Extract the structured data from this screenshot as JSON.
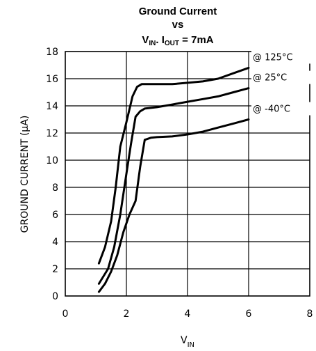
{
  "chart_data": {
    "type": "line",
    "title": {
      "line1": "Ground Current",
      "line2": "vs",
      "line3": {
        "a": "V",
        "a_sub": "IN",
        "b": ". I",
        "b_sub": "OUT",
        "c": " = 7mA"
      }
    },
    "xlabel": {
      "main": "V",
      "sub": "IN"
    },
    "ylabel": "GROUND CURRENT (μA)",
    "xlim": [
      0,
      8
    ],
    "ylim": [
      0,
      18
    ],
    "x_ticks": [
      0,
      2,
      4,
      6,
      8
    ],
    "y_ticks": [
      0,
      2,
      4,
      6,
      8,
      10,
      12,
      14,
      16,
      18
    ],
    "grid": true,
    "series": [
      {
        "name": "@ 125°C",
        "x": [
          1.1,
          1.3,
          1.5,
          1.65,
          1.8,
          2.0,
          2.2,
          2.35,
          2.5,
          3.0,
          3.5,
          4.0,
          4.5,
          5.0,
          5.5,
          6.0
        ],
        "y": [
          2.4,
          3.6,
          5.5,
          8.0,
          11.0,
          12.8,
          14.7,
          15.4,
          15.6,
          15.6,
          15.6,
          15.7,
          15.8,
          16.0,
          16.4,
          16.8
        ]
      },
      {
        "name": "@ 25°C",
        "x": [
          1.1,
          1.4,
          1.6,
          1.8,
          2.0,
          2.15,
          2.3,
          2.45,
          2.6,
          3.0,
          3.5,
          4.0,
          4.5,
          5.0,
          5.5,
          6.0
        ],
        "y": [
          0.9,
          2.0,
          3.6,
          6.0,
          9.0,
          11.2,
          13.2,
          13.6,
          13.8,
          13.9,
          14.1,
          14.3,
          14.5,
          14.7,
          15.0,
          15.3
        ]
      },
      {
        "name": "@ -40°C",
        "x": [
          1.1,
          1.3,
          1.5,
          1.7,
          1.9,
          2.1,
          2.3,
          2.45,
          2.6,
          2.8,
          3.0,
          3.5,
          4.0,
          4.5,
          5.0,
          5.5,
          6.0
        ],
        "y": [
          0.3,
          0.9,
          1.8,
          3.0,
          4.7,
          6.0,
          7.0,
          9.5,
          11.5,
          11.65,
          11.7,
          11.75,
          11.9,
          12.1,
          12.4,
          12.7,
          13.0
        ]
      }
    ]
  }
}
